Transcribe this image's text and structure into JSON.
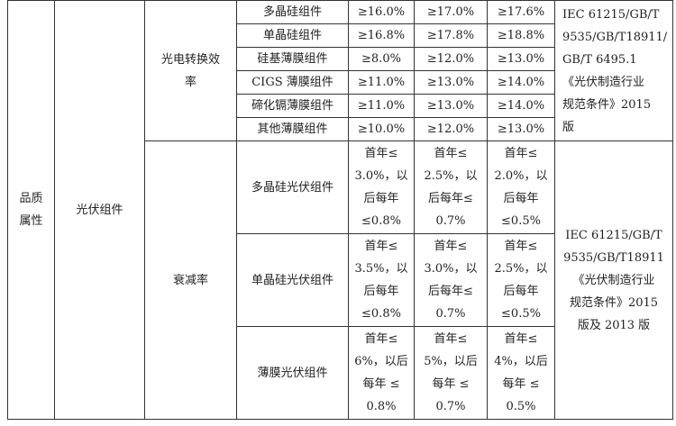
{
  "category": "品质\n属性",
  "product": "光伏组件",
  "efficiency": {
    "label": "光电转换效\n率",
    "rows": [
      {
        "name": "多晶硅组件",
        "v": [
          "≥16.0%",
          "≥17.0%",
          "≥17.6%"
        ]
      },
      {
        "name": "单晶硅组件",
        "v": [
          "≥16.8%",
          "≥17.8%",
          "≥18.8%"
        ]
      },
      {
        "name": "硅基薄膜组件",
        "v": [
          "≥8.0%",
          "≥12.0%",
          "≥13.0%"
        ]
      },
      {
        "name": "CIGS 薄膜组件",
        "v": [
          "≥11.0%",
          "≥13.0%",
          "≥14.0%"
        ]
      },
      {
        "name": "碲化镉薄膜组件",
        "v": [
          "≥11.0%",
          "≥13.0%",
          "≥14.0%"
        ]
      },
      {
        "name": "其他薄膜组件",
        "v": [
          "≥10.0%",
          "≥12.0%",
          "≥13.0%"
        ]
      }
    ],
    "standard": "IEC   61215/GB/T\n9535/GB/T18911/\nGB/T 6495.1\n《光伏制造行业\n规范条件》2015\n版"
  },
  "decay": {
    "label": "衰减率",
    "rows": [
      {
        "name": "多晶硅光伏组件",
        "v": [
          "首年≤\n3.0%，以\n后每年\n≤0.8%",
          "首年≤\n2.5%，以\n后每年≤\n0.7%",
          "首年≤\n2.0%，以\n后每年\n≤0.5%"
        ]
      },
      {
        "name": "单晶硅光伏组件",
        "v": [
          "首年≤\n3.5%，以\n后每年\n≤0.8%",
          "首年≤\n3.0%，以\n后每年≤\n0.7%",
          "首年≤\n2.5%，以\n后每年\n≤0.5%"
        ]
      },
      {
        "name": "薄膜光伏组件",
        "v": [
          "首年≤\n6%，以后\n每年 ≤\n0.8%",
          "首年≤\n5%，以后\n每年 ≤\n0.7%",
          "首年≤\n4%，以后\n每年 ≤\n0.5%"
        ]
      }
    ],
    "standard": "IEC 61215/GB/T\n9535/GB/T18911\n《光伏制造行业\n规范条件》2015\n版及 2013 版"
  }
}
